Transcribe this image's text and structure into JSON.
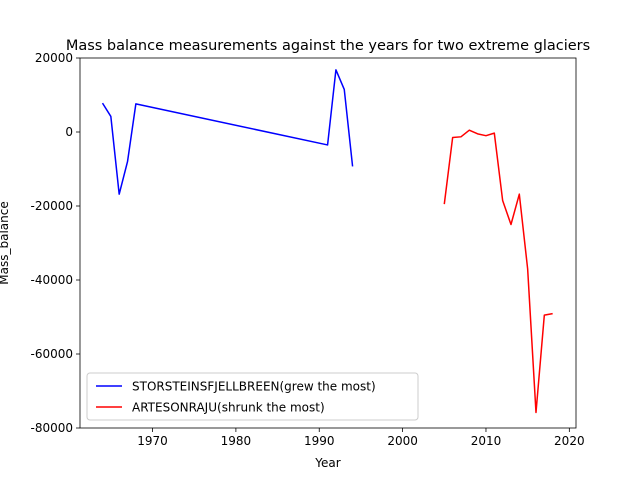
{
  "chart_data": {
    "type": "line",
    "title": "Mass balance measurements against the years for two extreme glaciers",
    "xlabel": "Year",
    "ylabel": "Mass_balance",
    "xlim": [
      1961.3,
      2020.8
    ],
    "ylim": [
      -80000,
      20000
    ],
    "xticks": [
      1970,
      1980,
      1990,
      2000,
      2010,
      2020
    ],
    "yticks": [
      -80000,
      -60000,
      -40000,
      -20000,
      0,
      20000
    ],
    "grid": false,
    "legend_position": "lower-left",
    "series": [
      {
        "name": "STORSTEINSFJELLBREEN(grew the most)",
        "color": "#0000ff",
        "x": [
          1964,
          1965,
          1966,
          1967,
          1968,
          1991,
          1992,
          1993,
          1994
        ],
        "y": [
          7800,
          4200,
          -16800,
          -8000,
          7600,
          -3500,
          16800,
          11500,
          -9300
        ]
      },
      {
        "name": "ARTESONRAJU(shrunk the most)",
        "color": "#ff0000",
        "x": [
          2005,
          2006,
          2007,
          2008,
          2009,
          2010,
          2011,
          2012,
          2013,
          2014,
          2015,
          2016,
          2017,
          2018
        ],
        "y": [
          -19500,
          -1500,
          -1300,
          500,
          -500,
          -1000,
          -300,
          -18500,
          -25000,
          -16800,
          -37000,
          -75800,
          -49500,
          -49100
        ]
      }
    ]
  }
}
